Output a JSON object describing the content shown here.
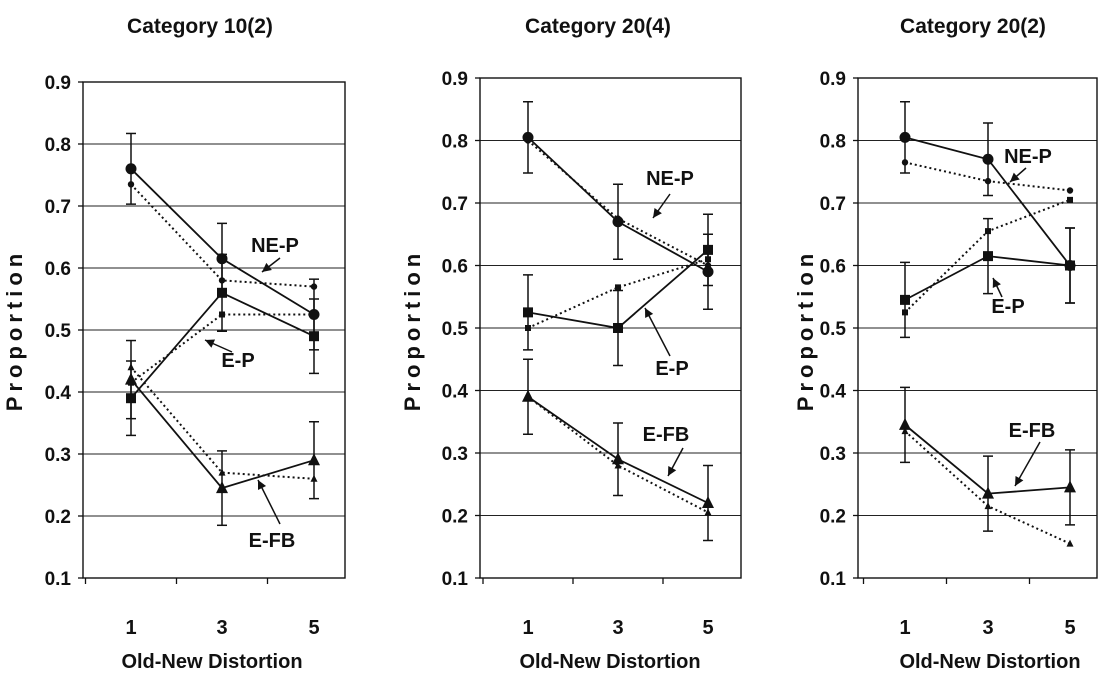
{
  "chart_data": [
    {
      "type": "line",
      "title": "Category 10(2)",
      "xlabel": "Old-New Distortion",
      "ylabel": "Proportion",
      "x": [
        1,
        3,
        5
      ],
      "ylim": [
        0.1,
        0.9
      ],
      "yticks": [
        "0.1",
        "0.2",
        "0.3",
        "0.4",
        "0.5",
        "0.6",
        "0.7",
        "0.8",
        "0.9"
      ],
      "grid": "horizontal",
      "series": [
        {
          "name": "NE-P",
          "style": "solid",
          "marker": "circle",
          "values": [
            0.76,
            0.615,
            0.525
          ],
          "errors": [
            0.057,
            0.057,
            0.057
          ]
        },
        {
          "name": "NE-P",
          "style": "dotted",
          "marker": "circle",
          "values": [
            0.735,
            0.58,
            0.57
          ]
        },
        {
          "name": "E-P",
          "style": "solid",
          "marker": "square",
          "values": [
            0.39,
            0.56,
            0.49
          ],
          "errors": [
            0.06,
            0.062,
            0.06
          ]
        },
        {
          "name": "E-P",
          "style": "dotted",
          "marker": "square",
          "values": [
            0.415,
            0.525,
            0.525
          ]
        },
        {
          "name": "E-FB",
          "style": "solid",
          "marker": "triangle",
          "values": [
            0.42,
            0.245,
            0.29
          ],
          "errors": [
            0.063,
            0.06,
            0.062
          ]
        },
        {
          "name": "E-FB",
          "style": "dotted",
          "marker": "triangle",
          "values": [
            0.44,
            0.27,
            0.26
          ]
        }
      ],
      "annotations": [
        "NE-P",
        "E-P",
        "E-FB"
      ]
    },
    {
      "type": "line",
      "title": "Category 20(4)",
      "xlabel": "Old-New Distortion",
      "ylabel": "Proportion",
      "x": [
        1,
        3,
        5
      ],
      "ylim": [
        0.1,
        0.9
      ],
      "yticks": [
        "0.1",
        "0.2",
        "0.3",
        "0.4",
        "0.5",
        "0.6",
        "0.7",
        "0.8",
        "0.9"
      ],
      "grid": "horizontal",
      "series": [
        {
          "name": "NE-P",
          "style": "solid",
          "marker": "circle",
          "values": [
            0.805,
            0.67,
            0.59
          ],
          "errors": [
            0.057,
            0.06,
            0.06
          ]
        },
        {
          "name": "NE-P",
          "style": "dotted",
          "marker": "circle",
          "values": [
            0.8,
            0.675,
            0.6
          ]
        },
        {
          "name": "E-P",
          "style": "solid",
          "marker": "square",
          "values": [
            0.525,
            0.5,
            0.625
          ],
          "errors": [
            0.06,
            0.06,
            0.057
          ]
        },
        {
          "name": "E-P",
          "style": "dotted",
          "marker": "square",
          "values": [
            0.5,
            0.565,
            0.61
          ]
        },
        {
          "name": "E-FB",
          "style": "solid",
          "marker": "triangle",
          "values": [
            0.39,
            0.29,
            0.22
          ],
          "errors": [
            0.06,
            0.058,
            0.06
          ]
        },
        {
          "name": "E-FB",
          "style": "dotted",
          "marker": "triangle",
          "values": [
            0.39,
            0.28,
            0.205
          ]
        }
      ],
      "annotations": [
        "NE-P",
        "E-P",
        "E-FB"
      ]
    },
    {
      "type": "line",
      "title": "Category 20(2)",
      "xlabel": "Old-New Distortion",
      "ylabel": "Proportion",
      "x": [
        1,
        3,
        5
      ],
      "ylim": [
        0.1,
        0.9
      ],
      "yticks": [
        "0.1",
        "0.2",
        "0.3",
        "0.4",
        "0.5",
        "0.6",
        "0.7",
        "0.8",
        "0.9"
      ],
      "grid": "horizontal",
      "series": [
        {
          "name": "NE-P",
          "style": "solid",
          "marker": "circle",
          "values": [
            0.805,
            0.77,
            0.6
          ],
          "errors": [
            0.057,
            0.058,
            0.06
          ]
        },
        {
          "name": "NE-P",
          "style": "dotted",
          "marker": "circle",
          "values": [
            0.765,
            0.735,
            0.72
          ]
        },
        {
          "name": "E-P",
          "style": "solid",
          "marker": "square",
          "values": [
            0.545,
            0.615,
            0.6
          ],
          "errors": [
            0.06,
            0.06,
            0.06
          ]
        },
        {
          "name": "E-P",
          "style": "dotted",
          "marker": "square",
          "values": [
            0.525,
            0.655,
            0.705
          ]
        },
        {
          "name": "E-FB",
          "style": "solid",
          "marker": "triangle",
          "values": [
            0.345,
            0.235,
            0.245
          ],
          "errors": [
            0.06,
            0.06,
            0.06
          ]
        },
        {
          "name": "E-FB",
          "style": "dotted",
          "marker": "triangle",
          "values": [
            0.335,
            0.215,
            0.155
          ]
        }
      ],
      "annotations": [
        "NE-P",
        "E-P",
        "E-FB"
      ]
    }
  ]
}
